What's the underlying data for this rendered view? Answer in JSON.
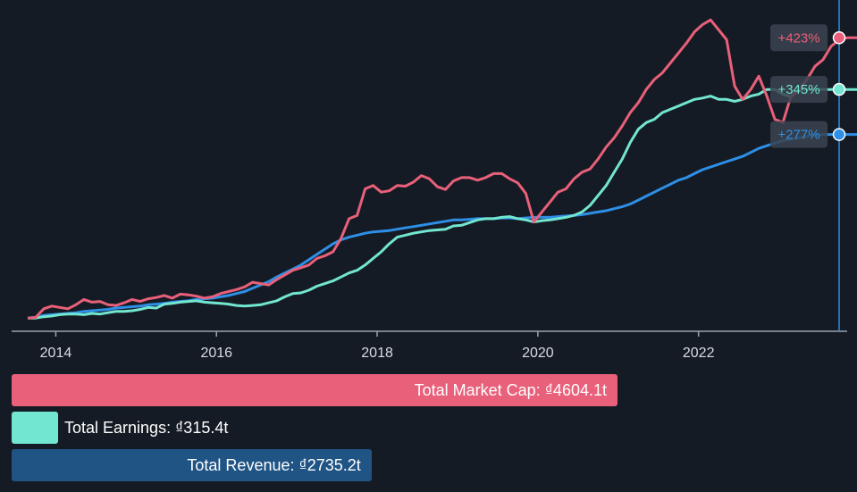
{
  "chart_data": {
    "type": "line",
    "x_start": 2013.65,
    "x_step": 0.1,
    "xlim": [
      2013.45,
      2023.85
    ],
    "ylim": [
      -20,
      480
    ],
    "x_ticks": [
      2014,
      2016,
      2018,
      2020,
      2022
    ],
    "x_tick_labels": [
      "2014",
      "2016",
      "2018",
      "2020",
      "2022"
    ],
    "cursor_x": 2023.75,
    "series": [
      {
        "name": "Total Market Cap",
        "color": "#e8607a",
        "end_label": "+423%",
        "values": [
          0,
          1,
          14,
          18,
          16,
          14,
          20,
          28,
          24,
          25,
          20,
          19,
          23,
          28,
          25,
          29,
          31,
          34,
          30,
          36,
          35,
          33,
          30,
          32,
          37,
          40,
          43,
          47,
          54,
          52,
          50,
          58,
          65,
          72,
          76,
          80,
          90,
          94,
          100,
          120,
          150,
          155,
          195,
          200,
          190,
          192,
          200,
          199,
          205,
          215,
          210,
          198,
          194,
          207,
          212,
          212,
          208,
          212,
          218,
          218,
          210,
          204,
          188,
          145,
          160,
          175,
          190,
          195,
          210,
          220,
          225,
          240,
          258,
          272,
          290,
          310,
          325,
          345,
          360,
          370,
          385,
          400,
          415,
          432,
          443,
          450,
          435,
          420,
          350,
          330,
          345,
          365,
          335,
          300,
          295,
          335,
          345,
          360,
          380,
          390,
          410,
          420,
          423,
          423,
          423
        ]
      },
      {
        "name": "Total Earnings",
        "color": "#72e6d0",
        "end_label": "+345%",
        "values": [
          0,
          0,
          2,
          3,
          5,
          6,
          6,
          5,
          7,
          6,
          8,
          10,
          10,
          11,
          13,
          16,
          15,
          21,
          22,
          24,
          25,
          26,
          24,
          23,
          22,
          21,
          19,
          18,
          19,
          20,
          23,
          26,
          32,
          37,
          38,
          42,
          48,
          52,
          56,
          62,
          68,
          72,
          80,
          90,
          100,
          112,
          122,
          125,
          128,
          130,
          132,
          133,
          134,
          139,
          140,
          144,
          148,
          150,
          150,
          152,
          153,
          150,
          148,
          145,
          147,
          148,
          150,
          152,
          155,
          160,
          170,
          185,
          200,
          220,
          240,
          265,
          285,
          295,
          300,
          310,
          315,
          320,
          325,
          330,
          332,
          335,
          330,
          330,
          327,
          330,
          335,
          338,
          345,
          345,
          338,
          334,
          345,
          345,
          345,
          345,
          345,
          345,
          345,
          345,
          345
        ]
      },
      {
        "name": "Total Revenue",
        "color": "#2d8fe6",
        "end_label": "+277%",
        "values": [
          0,
          1,
          4,
          5,
          6,
          7,
          8,
          10,
          11,
          12,
          13,
          15,
          16,
          17,
          18,
          20,
          21,
          22,
          24,
          25,
          26,
          28,
          29,
          30,
          32,
          34,
          37,
          40,
          45,
          50,
          55,
          62,
          68,
          74,
          80,
          88,
          96,
          104,
          112,
          118,
          122,
          125,
          128,
          130,
          131,
          132,
          134,
          136,
          138,
          140,
          142,
          144,
          146,
          148,
          148,
          149,
          150,
          150,
          150,
          151,
          151,
          150,
          151,
          152,
          152,
          152,
          153,
          154,
          155,
          156,
          158,
          160,
          162,
          165,
          168,
          172,
          178,
          184,
          190,
          196,
          202,
          208,
          212,
          218,
          224,
          228,
          232,
          236,
          240,
          244,
          250,
          256,
          260,
          264,
          268,
          270,
          272,
          274,
          276,
          277,
          277,
          277,
          277,
          277,
          277
        ]
      }
    ]
  },
  "bars": [
    {
      "name": "total-market-cap",
      "label": "Total Market Cap: ₫4604.1t",
      "value": 4604.1,
      "color": "#e8607a"
    },
    {
      "name": "total-earnings",
      "label": "Total Earnings: ₫315.4t",
      "value": 315.4,
      "color": "#72e6d0"
    },
    {
      "name": "total-revenue",
      "label": "Total Revenue: ₫2735.2t",
      "value": 2735.2,
      "color": "#1f5485"
    }
  ],
  "colors": {
    "background": "#151b24",
    "axis": "#9aa3ad",
    "cursor": "#2d8fe6",
    "tag_bg": "#3a4350"
  }
}
